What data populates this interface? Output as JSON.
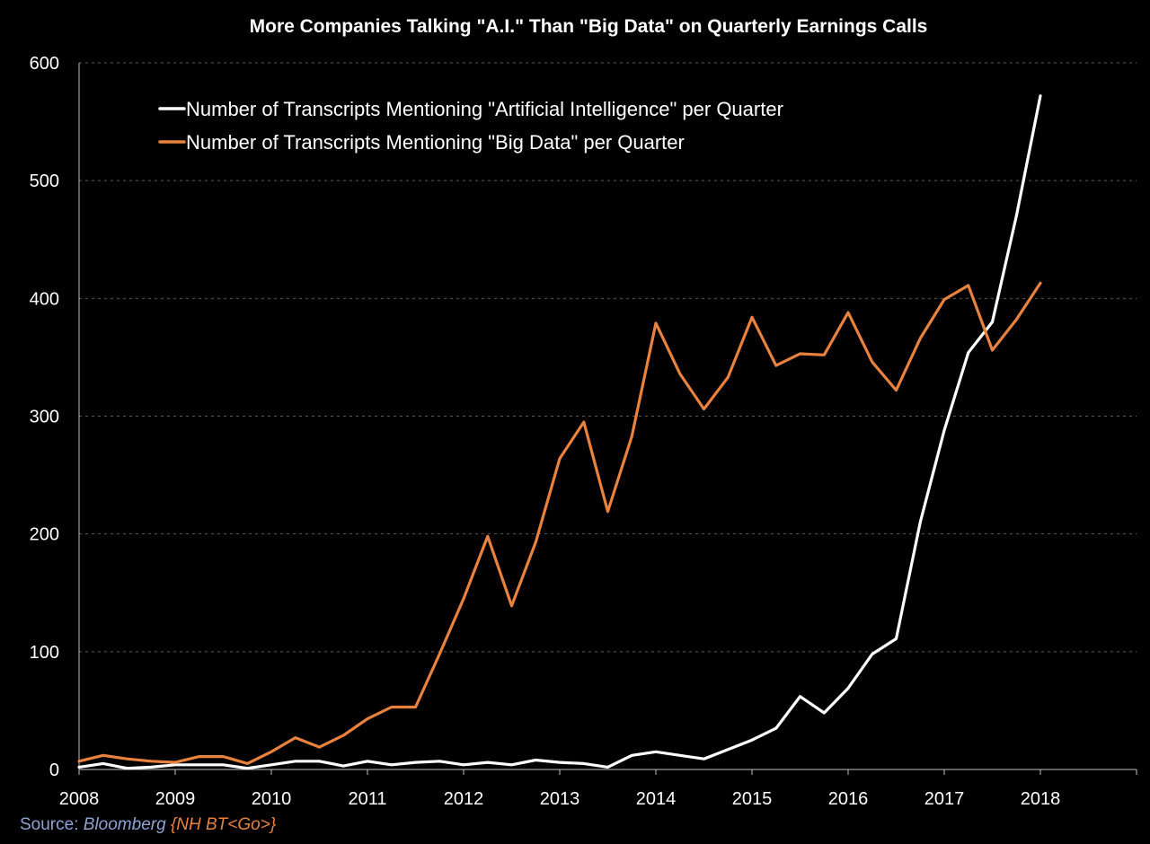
{
  "chart_data": {
    "type": "line",
    "title": "More Companies Talking \"A.I.\" Than \"Big Data\" on Quarterly Earnings Calls",
    "xlabel": "",
    "ylabel": "",
    "xlim": [
      2008,
      2019
    ],
    "ylim": [
      0,
      600
    ],
    "x_ticks": [
      2008,
      2009,
      2010,
      2011,
      2012,
      2013,
      2014,
      2015,
      2016,
      2017,
      2018
    ],
    "y_ticks": [
      0,
      100,
      200,
      300,
      400,
      500,
      600
    ],
    "grid": "horizontal dashed",
    "legend_position": "top-left",
    "x": [
      2008.0,
      2008.25,
      2008.5,
      2008.75,
      2009.0,
      2009.25,
      2009.5,
      2009.75,
      2010.0,
      2010.25,
      2010.5,
      2010.75,
      2011.0,
      2011.25,
      2011.5,
      2011.75,
      2012.0,
      2012.25,
      2012.5,
      2012.75,
      2013.0,
      2013.25,
      2013.5,
      2013.75,
      2014.0,
      2014.25,
      2014.5,
      2014.75,
      2015.0,
      2015.25,
      2015.5,
      2015.75,
      2016.0,
      2016.25,
      2016.5,
      2016.75,
      2017.0,
      2017.25,
      2017.5,
      2017.75,
      2018.0
    ],
    "series": [
      {
        "name": "Number of Transcripts Mentioning \"Artificial Intelligence\" per Quarter",
        "color": "#ffffff",
        "values": [
          2,
          5,
          1,
          2,
          4,
          4,
          4,
          1,
          4,
          7,
          7,
          3,
          7,
          4,
          6,
          7,
          4,
          6,
          4,
          8,
          6,
          5,
          2,
          12,
          15,
          12,
          9,
          17,
          25,
          35,
          62,
          48,
          69,
          98,
          111,
          210,
          288,
          354,
          380,
          470,
          572
        ]
      },
      {
        "name": "Number of Transcripts Mentioning \"Big Data\" per Quarter",
        "color": "#e8823d",
        "values": [
          7,
          12,
          9,
          7,
          6,
          11,
          11,
          5,
          15,
          27,
          19,
          29,
          43,
          53,
          53,
          98,
          145,
          198,
          139,
          193,
          264,
          295,
          219,
          283,
          379,
          336,
          306,
          333,
          384,
          343,
          353,
          352,
          388,
          346,
          322,
          366,
          399,
          411,
          356,
          382,
          413
        ]
      }
    ]
  },
  "source": {
    "label": "Source: ",
    "provider": "Bloomberg",
    "command": "{NH BT<Go>}"
  }
}
